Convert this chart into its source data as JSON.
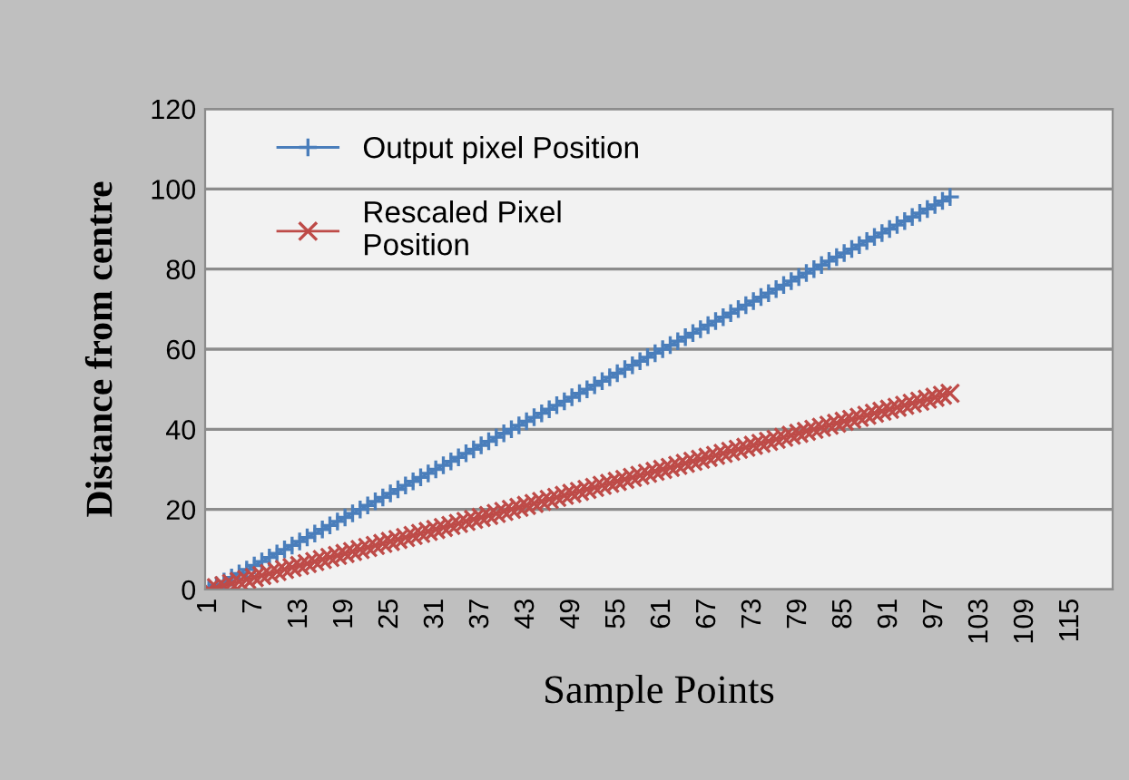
{
  "chart_data": {
    "type": "line",
    "xlabel": "Sample Points",
    "ylabel": "Distance from centre",
    "x": [
      1,
      2,
      3,
      4,
      5,
      6,
      7,
      8,
      9,
      10,
      11,
      12,
      13,
      14,
      15,
      16,
      17,
      18,
      19,
      20,
      21,
      22,
      23,
      24,
      25,
      26,
      27,
      28,
      29,
      30,
      31,
      32,
      33,
      34,
      35,
      36,
      37,
      38,
      39,
      40,
      41,
      42,
      43,
      44,
      45,
      46,
      47,
      48,
      49,
      50,
      51,
      52,
      53,
      54,
      55,
      56,
      57,
      58,
      59,
      60,
      61,
      62,
      63,
      64,
      65,
      66,
      67,
      68,
      69,
      70,
      71,
      72,
      73,
      74,
      75,
      76,
      77,
      78,
      79,
      80,
      81,
      82,
      83,
      84,
      85,
      86,
      87,
      88,
      89,
      90,
      91,
      92,
      93,
      94,
      95,
      96,
      97,
      98,
      99
    ],
    "series": [
      {
        "name": "Output pixel Position",
        "color": "#4a7ebb",
        "marker": "cross",
        "values": [
          0,
          1,
          2,
          3,
          4,
          5,
          6,
          7,
          8,
          9,
          10,
          11,
          12,
          13,
          14,
          15,
          16,
          17,
          18,
          19,
          20,
          21,
          22,
          23,
          24,
          25,
          26,
          27,
          28,
          29,
          30,
          31,
          32,
          33,
          34,
          35,
          36,
          37,
          38,
          39,
          40,
          41,
          42,
          43,
          44,
          45,
          46,
          47,
          48,
          49,
          50,
          51,
          52,
          53,
          54,
          55,
          56,
          57,
          58,
          59,
          60,
          61,
          62,
          63,
          64,
          65,
          66,
          67,
          68,
          69,
          70,
          71,
          72,
          73,
          74,
          75,
          76,
          77,
          78,
          79,
          80,
          81,
          82,
          83,
          84,
          85,
          86,
          87,
          88,
          89,
          90,
          91,
          92,
          93,
          94,
          95,
          96,
          97,
          98
        ]
      },
      {
        "name": "Rescaled Pixel\nPosition",
        "color": "#be4b48",
        "marker": "cross",
        "values": [
          0,
          0.5,
          1,
          1.5,
          2,
          2.5,
          3,
          3.5,
          4,
          4.5,
          5,
          5.5,
          6,
          6.5,
          7,
          7.5,
          8,
          8.5,
          9,
          9.5,
          10,
          10.5,
          11,
          11.5,
          12,
          12.5,
          13,
          13.5,
          14,
          14.5,
          15,
          15.5,
          16,
          16.5,
          17,
          17.5,
          18,
          18.5,
          19,
          19.5,
          20,
          20.5,
          21,
          21.5,
          22,
          22.5,
          23,
          23.5,
          24,
          24.5,
          25,
          25.5,
          26,
          26.5,
          27,
          27.5,
          28,
          28.5,
          29,
          29.5,
          30,
          30.5,
          31,
          31.5,
          32,
          32.5,
          33,
          33.5,
          34,
          34.5,
          35,
          35.5,
          36,
          36.5,
          37,
          37.5,
          38,
          38.5,
          39,
          39.5,
          40,
          40.5,
          41,
          41.5,
          42,
          42.5,
          43,
          43.5,
          44,
          44.5,
          45,
          45.5,
          46,
          46.5,
          47,
          47.5,
          48,
          48.5,
          49
        ]
      }
    ],
    "xlim": [
      0.5,
      120.5
    ],
    "xticks": [
      1,
      7,
      13,
      19,
      25,
      31,
      37,
      43,
      49,
      55,
      61,
      67,
      73,
      79,
      85,
      91,
      97,
      103,
      109,
      115
    ],
    "ylim": [
      0,
      120
    ],
    "yticks": [
      0,
      20,
      40,
      60,
      80,
      100,
      120
    ],
    "grid": "y",
    "legend": "top left"
  }
}
